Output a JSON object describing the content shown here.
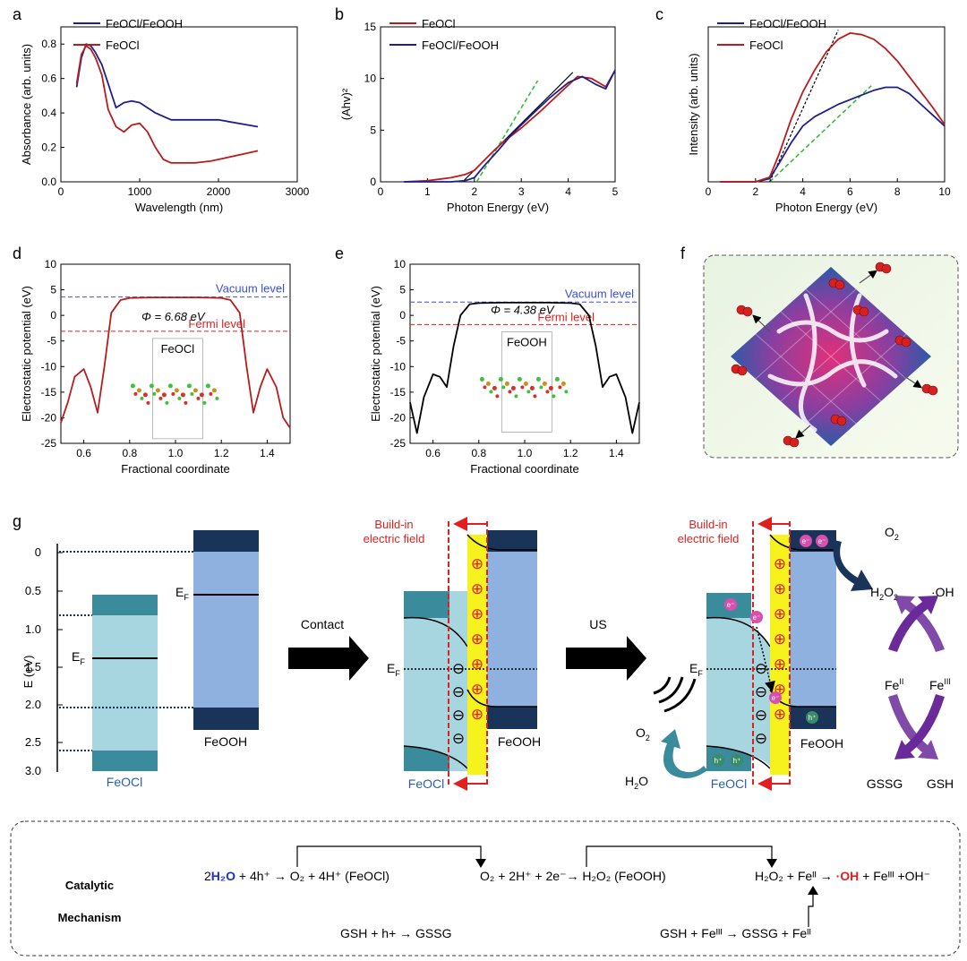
{
  "panel_letters": {
    "a": "a",
    "b": "b",
    "c": "c",
    "d": "d",
    "e": "e",
    "f": "f",
    "g": "g"
  },
  "colors": {
    "navy": "#1f1f8a",
    "red": "#b81c1c",
    "green": "#2db82d",
    "blue_dash": "#3b4fd6",
    "red_dash": "#e02020",
    "teal": "#3a8b9c",
    "light_teal": "#a8d6e0",
    "light_blue": "#8fb1e0",
    "dark_navy": "#1a3358",
    "yellow": "#f5f21e",
    "purple": "#6a2a9a"
  },
  "chart_data": [
    {
      "panel": "a",
      "type": "line",
      "xlabel": "Wavelength (nm)",
      "ylabel": "Absorbance (arb. units)",
      "xlim": [
        0,
        3000
      ],
      "ylim": [
        0,
        0.9
      ],
      "xticks": [
        "0",
        "1000",
        "2000",
        "3000"
      ],
      "yticks": [
        "0.0",
        "0.2",
        "0.4",
        "0.6",
        "0.8"
      ],
      "series": [
        {
          "name": "FeOCl/FeOOH",
          "x": [
            200,
            260,
            320,
            380,
            440,
            520,
            600,
            700,
            800,
            900,
            1000,
            1200,
            1400,
            1600,
            2000,
            2500
          ],
          "y": [
            0.55,
            0.72,
            0.8,
            0.79,
            0.75,
            0.68,
            0.57,
            0.43,
            0.46,
            0.47,
            0.46,
            0.4,
            0.36,
            0.36,
            0.36,
            0.32
          ]
        },
        {
          "name": "FeOCl",
          "x": [
            200,
            260,
            320,
            380,
            440,
            520,
            600,
            700,
            800,
            900,
            1000,
            1100,
            1200,
            1300,
            1400,
            1500,
            1700,
            1900,
            2100,
            2300,
            2500
          ],
          "y": [
            0.57,
            0.74,
            0.79,
            0.77,
            0.72,
            0.62,
            0.42,
            0.32,
            0.29,
            0.33,
            0.34,
            0.29,
            0.2,
            0.13,
            0.11,
            0.11,
            0.11,
            0.12,
            0.14,
            0.16,
            0.18
          ]
        }
      ]
    },
    {
      "panel": "b",
      "type": "line",
      "xlabel": "Photon Energy (eV)",
      "ylabel": "(Ahv)²",
      "xlim": [
        0,
        5
      ],
      "ylim": [
        0,
        15
      ],
      "xticks": [
        "0",
        "1",
        "2",
        "3",
        "4",
        "5"
      ],
      "yticks": [
        "0",
        "5",
        "10",
        "15"
      ],
      "series": [
        {
          "name": "FeOCl",
          "x": [
            0.5,
            1.0,
            1.5,
            1.8,
            2.0,
            2.3,
            2.6,
            3.0,
            3.4,
            3.8,
            4.2,
            4.5,
            4.8,
            5.0
          ],
          "y": [
            0,
            0.1,
            0.4,
            0.7,
            1.1,
            2.5,
            3.8,
            5.2,
            6.8,
            8.5,
            10.2,
            10.0,
            9.2,
            10.8
          ]
        },
        {
          "name": "FeOCl/FeOOH",
          "x": [
            0.5,
            1.0,
            1.5,
            1.8,
            2.0,
            2.2,
            2.5,
            2.8,
            3.2,
            3.6,
            4.0,
            4.3,
            4.6,
            4.8,
            5.0
          ],
          "y": [
            0,
            0,
            0,
            0.1,
            0.4,
            1.5,
            3.0,
            4.6,
            6.4,
            8.1,
            9.6,
            10.2,
            9.4,
            9.0,
            10.8
          ]
        }
      ]
    },
    {
      "panel": "c",
      "type": "line",
      "xlabel": "Photon Energy (eV)",
      "ylabel": "Intensity (arb. units)",
      "xlim": [
        0,
        10
      ],
      "ylim": [
        0,
        1.0
      ],
      "xticks": [
        "0",
        "2",
        "4",
        "6",
        "8",
        "10"
      ],
      "yticks": [],
      "series": [
        {
          "name": "FeOCl/FeOOH",
          "x": [
            0.5,
            2.0,
            2.6,
            3.0,
            3.5,
            4.0,
            4.5,
            5.0,
            5.5,
            6.0,
            6.5,
            7.0,
            7.5,
            8.0,
            8.5,
            9.0,
            9.5,
            10.0
          ],
          "y": [
            0,
            0,
            0.02,
            0.12,
            0.25,
            0.36,
            0.42,
            0.46,
            0.5,
            0.53,
            0.56,
            0.59,
            0.61,
            0.61,
            0.57,
            0.5,
            0.43,
            0.36
          ]
        },
        {
          "name": "FeOCl",
          "x": [
            0.5,
            2.0,
            2.6,
            3.0,
            3.5,
            4.0,
            4.5,
            5.0,
            5.5,
            6.0,
            6.5,
            7.0,
            7.5,
            8.0,
            8.5,
            9.0,
            9.5,
            10.0
          ],
          "y": [
            0,
            0,
            0.03,
            0.18,
            0.4,
            0.58,
            0.72,
            0.84,
            0.92,
            0.96,
            0.95,
            0.92,
            0.86,
            0.78,
            0.68,
            0.58,
            0.48,
            0.37
          ]
        }
      ]
    },
    {
      "panel": "d",
      "type": "line",
      "xlabel": "Fractional coordinate",
      "ylabel": "Electrostatic potential (eV)",
      "xlim": [
        0.5,
        1.5
      ],
      "ylim": [
        -25,
        10
      ],
      "xticks": [
        "0.6",
        "0.8",
        "1.0",
        "1.2",
        "1.4"
      ],
      "yticks": [
        "10",
        "5",
        "0",
        "-5",
        "-10",
        "-15",
        "-20",
        "-25"
      ],
      "annotations": {
        "vacuum": "Vacuum level",
        "fermi": "Fermi level",
        "phi": "Φ = 6.68 eV",
        "material": "FeOCl"
      },
      "levels": {
        "vacuum": 3.6,
        "fermi": -3.1
      },
      "series": [
        {
          "name": "FeOCl",
          "x": [
            0.5,
            0.53,
            0.56,
            0.6,
            0.63,
            0.66,
            0.69,
            0.72,
            0.76,
            0.8,
            0.9,
            1.0,
            1.1,
            1.2,
            1.24,
            1.28,
            1.31,
            1.34,
            1.37,
            1.4,
            1.44,
            1.47,
            1.5
          ],
          "y": [
            -21,
            -17,
            -12,
            -10.5,
            -14,
            -19,
            -10,
            0.5,
            3,
            3.4,
            3.5,
            3.5,
            3.5,
            3.4,
            3,
            0.5,
            -10,
            -19,
            -14,
            -10.5,
            -14,
            -20,
            -22
          ]
        }
      ]
    },
    {
      "panel": "e",
      "type": "line",
      "xlabel": "Fractional coordinate",
      "ylabel": "Electrostatic potential (eV)",
      "xlim": [
        0.5,
        1.5
      ],
      "ylim": [
        -25,
        10
      ],
      "xticks": [
        "0.6",
        "0.8",
        "1.0",
        "1.2",
        "1.4"
      ],
      "yticks": [
        "10",
        "5",
        "0",
        "-5",
        "-10",
        "-15",
        "-20",
        "-25"
      ],
      "annotations": {
        "vacuum": "Vacuum level",
        "fermi": "Fermi level",
        "phi": "Φ = 4.38 eV",
        "material": "FeOOH"
      },
      "levels": {
        "vacuum": 2.6,
        "fermi": -1.8
      },
      "series": [
        {
          "name": "FeOOH",
          "x": [
            0.5,
            0.53,
            0.56,
            0.6,
            0.63,
            0.66,
            0.69,
            0.72,
            0.76,
            0.8,
            0.9,
            1.0,
            1.1,
            1.2,
            1.24,
            1.28,
            1.31,
            1.34,
            1.37,
            1.4,
            1.44,
            1.47,
            1.5
          ],
          "y": [
            -17,
            -23,
            -16,
            -11.5,
            -12,
            -14,
            -6,
            0,
            2.2,
            2.4,
            2.5,
            2.5,
            2.5,
            2.4,
            2.2,
            0,
            -6,
            -14,
            -12,
            -11.5,
            -16,
            -23,
            -17
          ]
        }
      ]
    }
  ],
  "g": {
    "axis_label": "E (eV)",
    "ticks": [
      "0",
      "0.5",
      "1.0",
      "1.5",
      "2.0",
      "2.5",
      "3.0"
    ],
    "ef": "E",
    "ef_sub": "F",
    "feocl": "FeOCl",
    "feooh": "FeOOH",
    "contact": "Contact",
    "us": "US",
    "build_in_1": "Build-in",
    "build_in_2": "electric field",
    "o2": "O",
    "two": "2",
    "h2o2": "H",
    "h2o": "H",
    "oh_dot": "·OH",
    "fe_ii": "Fe",
    "fe_iii": "Fe",
    "ii": "II",
    "iii": "III",
    "gssg": "GSSG",
    "gsh": "GSH",
    "eminus": "e⁻",
    "hplus": "h⁺",
    "plus": "⊕",
    "minus": "⊖"
  },
  "mechanism": {
    "title_1": "Catalytic",
    "title_2": "Mechanism",
    "eq1": "2H₂O + 4h⁺ → O₂ + 4H⁺ (FeOCl)",
    "eq2": "O₂ + 2H⁺ + 2e⁻→ H₂O₂ (FeOOH)",
    "eq3": "H₂O₂ + Feᴵᴵ → ·OH + Feᴵᴵᴵ +OH⁻",
    "eq4": "GSH + h+ → GSSG",
    "eq5": "GSH + Feᴵᴵᴵ → GSSG + Feᴵᴵ"
  }
}
